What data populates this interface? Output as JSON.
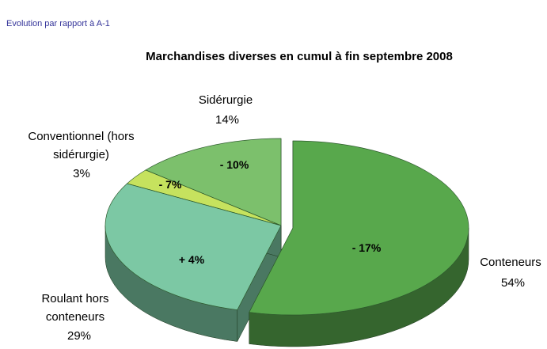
{
  "chart_data": {
    "type": "pie",
    "subtitle": "Evolution par rapport à A-1",
    "title": "Marchandises diverses en cumul à fin septembre 2008",
    "categories": [
      "Conteneurs",
      "Roulant hors conteneurs",
      "Conventionnel (hors sidérurgie)",
      "Sidérurgie"
    ],
    "values": [
      54,
      29,
      3,
      14
    ],
    "value_labels": [
      "54%",
      "29%",
      "3%",
      "14%"
    ],
    "annotations": [
      "- 17%",
      "+ 4%",
      "- 7%",
      "- 10%"
    ],
    "colors": [
      "#58a84c",
      "#7cc8a4",
      "#c6e25e",
      "#7cc06c"
    ]
  }
}
